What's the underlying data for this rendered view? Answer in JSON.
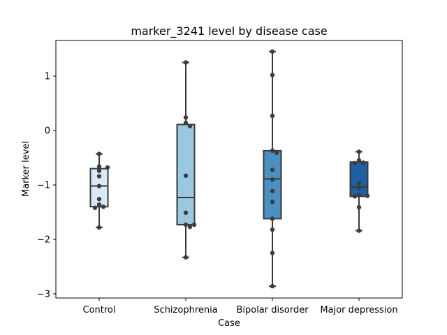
{
  "chart_data": {
    "type": "box",
    "title": "marker_3241 level by disease case",
    "xlabel": "Case",
    "ylabel": "Marker level",
    "ylim": [
      -3.08,
      1.62
    ],
    "yticks": [
      1,
      0,
      -1,
      -2,
      -3
    ],
    "ytick_labels": [
      "1",
      "0",
      "−1",
      "−2",
      "−3"
    ],
    "grid": false,
    "categories": [
      "Control",
      "Schizophrenia",
      "Bipolar disorder",
      "Major depression"
    ],
    "boxes": [
      {
        "category": "Control",
        "color": "#dbe9f6",
        "whisker_low": -1.78,
        "q1": -1.4,
        "median": -1.02,
        "q3": -0.7,
        "whisker_high": -0.43,
        "points": [
          -0.43,
          -0.66,
          -0.68,
          -0.74,
          -0.84,
          -1.02,
          -1.26,
          -1.36,
          -1.4,
          -1.42,
          -1.78
        ]
      },
      {
        "category": "Schizophrenia",
        "color": "#9ac8e0",
        "whisker_low": -2.33,
        "q1": -1.73,
        "median": -1.23,
        "q3": 0.11,
        "whisker_high": 1.25,
        "points": [
          1.25,
          0.24,
          0.14,
          0.08,
          -0.83,
          -1.51,
          -1.73,
          -1.73,
          -1.77,
          -2.33
        ]
      },
      {
        "category": "Bipolar disorder",
        "color": "#4a90c2",
        "whisker_low": -2.86,
        "q1": -1.62,
        "median": -0.89,
        "q3": -0.37,
        "whisker_high": 1.45,
        "points": [
          1.45,
          1.02,
          0.27,
          -0.37,
          -0.41,
          -0.72,
          -0.9,
          -1.11,
          -1.31,
          -1.62,
          -1.82,
          -2.25,
          -2.86
        ]
      },
      {
        "category": "Major depression",
        "color": "#1f5fa4",
        "whisker_low": -1.84,
        "q1": -1.21,
        "median": -1.04,
        "q3": -0.58,
        "whisker_high": -0.39,
        "points": [
          -0.39,
          -0.55,
          -0.59,
          -0.6,
          -0.97,
          -1.05,
          -1.18,
          -1.2,
          -1.21,
          -1.41,
          -1.84
        ]
      }
    ]
  }
}
